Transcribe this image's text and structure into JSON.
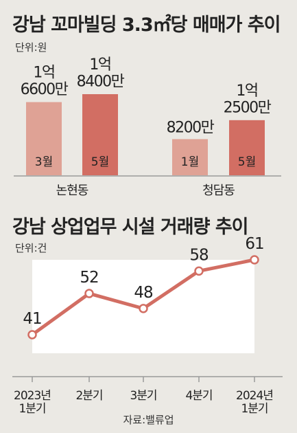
{
  "colors": {
    "bar_light": "#dfa295",
    "bar_dark": "#d26e63",
    "line": "#d26e63",
    "point_fill": "#ffffff",
    "background": "#ebe9e4",
    "plot_area": "#ffffff"
  },
  "chart_data": [
    {
      "type": "bar",
      "title": "강남 꼬마빌딩 3.3㎡당 매매가 추이",
      "unit": "단위:원",
      "categories": [
        "논현동",
        "청담동"
      ],
      "series": [
        {
          "name": "3월/1월",
          "values": [
            166000000,
            82000000
          ],
          "bar_labels": [
            "3월",
            "1월"
          ],
          "value_labels": [
            "1억\n6600만",
            "8200만"
          ]
        },
        {
          "name": "5월",
          "values": [
            184000000,
            125000000
          ],
          "bar_labels": [
            "5월",
            "5월"
          ],
          "value_labels": [
            "1억\n8400만",
            "1억\n2500만"
          ]
        }
      ]
    },
    {
      "type": "line",
      "title": "강남 상업업무 시설 거래량 추이",
      "unit": "단위:건",
      "categories": [
        "2023년\n1분기",
        "2분기",
        "3분기",
        "4분기",
        "2024년\n1분기"
      ],
      "values": [
        41,
        52,
        48,
        58,
        61
      ],
      "ylim": [
        30,
        65
      ]
    }
  ],
  "source": "자료:밸류업"
}
